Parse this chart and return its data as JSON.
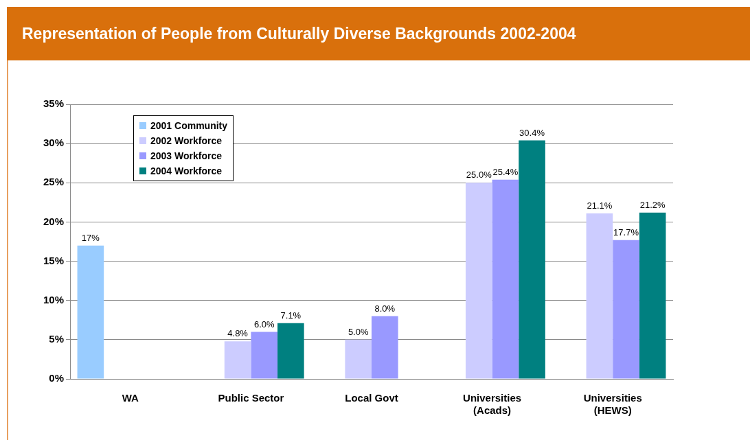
{
  "chart_data": {
    "type": "bar",
    "title": "Representation of People from Culturally Diverse Backgrounds 2002-2004",
    "categories": [
      "WA",
      "Public Sector",
      "Local Govt",
      "Universities\n(Acads)",
      "Universities\n(HEWS)"
    ],
    "series": [
      {
        "name": "2001 Community",
        "color": "#99ccff",
        "values": [
          17,
          null,
          null,
          null,
          null
        ],
        "value_labels": [
          "17%",
          null,
          null,
          null,
          null
        ]
      },
      {
        "name": "2002 Workforce",
        "color": "#ccccff",
        "values": [
          null,
          4.8,
          5.0,
          25.0,
          21.1
        ],
        "value_labels": [
          null,
          "4.8%",
          "5.0%",
          "25.0%",
          "21.1%"
        ]
      },
      {
        "name": "2003 Workforce",
        "color": "#9999ff",
        "values": [
          null,
          6.0,
          8.0,
          25.4,
          17.7
        ],
        "value_labels": [
          null,
          "6.0%",
          "8.0%",
          "25.4%",
          "17.7%"
        ]
      },
      {
        "name": "2004 Workforce",
        "color": "#008080",
        "values": [
          null,
          7.1,
          null,
          30.4,
          21.2
        ],
        "value_labels": [
          null,
          "7.1%",
          null,
          "30.4%",
          "21.2%"
        ]
      }
    ],
    "ylim": [
      0,
      35
    ],
    "yticks": [
      {
        "value": 0,
        "label": "0%"
      },
      {
        "value": 5,
        "label": "5%"
      },
      {
        "value": 10,
        "label": "10%"
      },
      {
        "value": 15,
        "label": "15%"
      },
      {
        "value": 20,
        "label": "20%"
      },
      {
        "value": 25,
        "label": "25%"
      },
      {
        "value": 30,
        "label": "30%"
      },
      {
        "value": 35,
        "label": "35%"
      }
    ],
    "grid": "y",
    "legend": "top left"
  }
}
